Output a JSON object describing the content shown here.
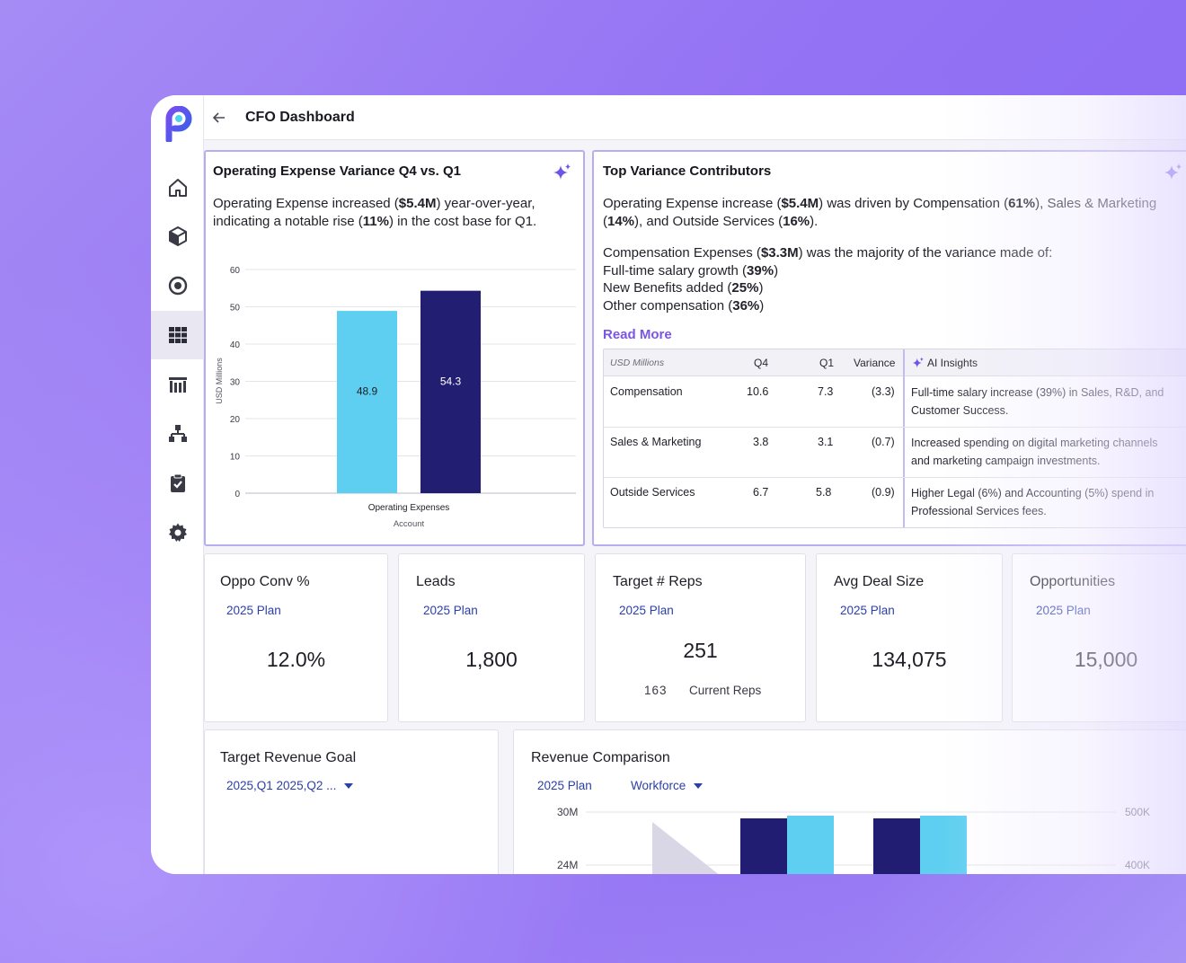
{
  "header": {
    "title": "CFO Dashboard"
  },
  "sidebar": {
    "items": [
      {
        "icon": "home-icon"
      },
      {
        "icon": "cube-icon"
      },
      {
        "icon": "target-icon"
      },
      {
        "icon": "grid-icon",
        "active": true
      },
      {
        "icon": "building-icon"
      },
      {
        "icon": "hierarchy-icon"
      },
      {
        "icon": "clipboard-check-icon"
      },
      {
        "icon": "gear-icon"
      }
    ]
  },
  "opex_card": {
    "title": "Operating Expense Variance Q4 vs. Q1",
    "line1_pre": "Operating Expense increased (",
    "line1_bold": "$5.4M",
    "line1_post": ") year-over-year,",
    "line2_pre": "indicating a notable rise (",
    "line2_bold": "11%",
    "line2_post": ") in the cost base for Q1."
  },
  "chart_data": {
    "type": "bar",
    "categories": [
      "Operating Expenses"
    ],
    "series": [
      {
        "values": [
          48.9
        ],
        "color": "#5ecff0"
      },
      {
        "values": [
          54.3
        ],
        "color": "#221f73"
      }
    ],
    "data_labels": [
      "48.9",
      "54.3"
    ],
    "xlabel": "Account",
    "ylabel": "USD Millions",
    "yticks": [
      "0",
      "10",
      "20",
      "30",
      "40",
      "50",
      "60"
    ],
    "ylim": [
      0,
      60
    ],
    "grid": true
  },
  "variance_card": {
    "title": "Top Variance Contributors",
    "p1_a": "Operating Expense increase (",
    "p1_b": "$5.4M",
    "p1_c": ") was driven by Compensation (",
    "p1_d": "61%",
    "p1_e": "), Sales & Marketing",
    "p2_a": "(",
    "p2_b": "14%",
    "p2_c": "), and Outside Services (",
    "p2_d": "16%",
    "p2_e": ").",
    "p3_a": "Compensation Expenses (",
    "p3_b": "$3.3M",
    "p3_c": ") was the majority of the variance made of:",
    "l1_a": "Full-time salary growth (",
    "l1_b": "39%",
    "l1_c": ")",
    "l2_a": "New Benefits added (",
    "l2_b": "25%",
    "l2_c": ")",
    "l3_a": "Other compensation (",
    "l3_b": "36%",
    "l3_c": ")",
    "read_more": "Read More",
    "table": {
      "headers": [
        "USD Millions",
        "Q4",
        "Q1",
        "Variance"
      ],
      "ai_header": "AI Insights",
      "rows": [
        {
          "name": "Compensation",
          "q4": "10.6",
          "q1": "7.3",
          "var": "(3.3)",
          "ai_1": "Full-time salary increase (39%) in Sales, R&D, and",
          "ai_2": "Customer Success."
        },
        {
          "name": "Sales & Marketing",
          "q4": "3.8",
          "q1": "3.1",
          "var": "(0.7)",
          "ai_1": "Increased spending on digital marketing channels",
          "ai_2": "and marketing campaign investments."
        },
        {
          "name": "Outside Services",
          "q4": "6.7",
          "q1": "5.8",
          "var": "(0.9)",
          "ai_1": "Higher Legal (6%) and Accounting (5%) spend in",
          "ai_2": "Professional Services fees."
        }
      ]
    }
  },
  "kpis": [
    {
      "title": "Oppo Conv %",
      "plan": "2025 Plan",
      "value": "12.0%"
    },
    {
      "title": "Leads",
      "plan": "2025 Plan",
      "value": "1,800"
    },
    {
      "title": "Target # Reps",
      "plan": "2025 Plan",
      "value": "251",
      "sub_count": "163",
      "sub_label": "Current Reps"
    },
    {
      "title": "Avg Deal Size",
      "plan": "2025 Plan",
      "value": "134,075"
    },
    {
      "title": "Opportunities",
      "plan": "2025 Plan",
      "value": "15,000"
    }
  ],
  "target_revenue": {
    "title": "Target Revenue Goal",
    "filter": "2025,Q1 2025,Q2 ..."
  },
  "revenue_comparison": {
    "title": "Revenue Comparison",
    "plan": "2025 Plan",
    "filter": "Workforce",
    "left_ticks": [
      "30M",
      "24M"
    ],
    "right_ticks": [
      "500K",
      "400K"
    ]
  }
}
